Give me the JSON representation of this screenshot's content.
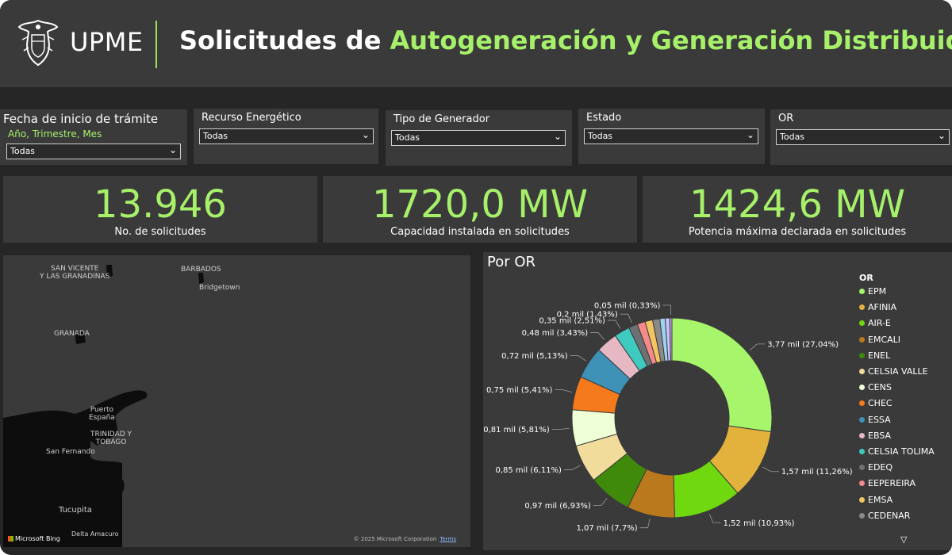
{
  "header": {
    "brand": "UPME",
    "title_prefix": "Solicitudes de ",
    "title_accent": "Autogeneración y Generación Distribuida"
  },
  "filters": [
    {
      "label": "Fecha de inicio de trámite",
      "sublabel": "Año, Trimestre, Mes",
      "value": "Todas"
    },
    {
      "label": "Recurso Energético",
      "value": "Todas"
    },
    {
      "label": "Tipo de Generador",
      "value": "Todas"
    },
    {
      "label": "Estado",
      "value": "Todas"
    },
    {
      "label": "OR",
      "value": "Todas"
    }
  ],
  "kpis": [
    {
      "value": "13.946",
      "caption": "No. de solicitudes"
    },
    {
      "value": "1720,0 MW",
      "caption": "Capacidad instalada en solicitudes"
    },
    {
      "value": "1424,6 MW",
      "caption": "Potencia máxima declarada en solicitudes"
    }
  ],
  "map": {
    "labels": [
      "SAN VICENTE\nY LAS GRANADINAS",
      "BARBADOS",
      "Bridgetown",
      "GRANADA",
      "Puerto\nEspaña",
      "TRINIDAD Y\nTOBAGO",
      "San Fernando",
      "Tucupita",
      "Delta Amacuro"
    ],
    "provider": "Microsoft Bing",
    "copyright": "© 2025 Microsoft Corporation",
    "terms": "Terms"
  },
  "or_panel": {
    "title": "Por OR",
    "legend_title": "OR"
  },
  "chart_data": {
    "type": "pie",
    "donut": true,
    "legend_position": "right",
    "series": [
      {
        "name": "EPM",
        "value": 3.77,
        "label": "3,77 mil (27,04%)",
        "color": "#a6f56a"
      },
      {
        "name": "AFINIA",
        "value": 1.57,
        "label": "1,57 mil (11,26%)",
        "color": "#e3b23c"
      },
      {
        "name": "AIR-E",
        "value": 1.52,
        "label": "1,52 mil (10,93%)",
        "color": "#6fd80f"
      },
      {
        "name": "EMCALI",
        "value": 1.07,
        "label": "1,07 mil (7,7%)",
        "color": "#b9791c"
      },
      {
        "name": "ENEL",
        "value": 0.97,
        "label": "0,97 mil (6,93%)",
        "color": "#3f8a0b"
      },
      {
        "name": "CELSIA VALLE",
        "value": 0.85,
        "label": "0,85 mil (6,11%)",
        "color": "#f2dc9c"
      },
      {
        "name": "CENS",
        "value": 0.81,
        "label": "0,81 mil (5,81%)",
        "color": "#efffd6"
      },
      {
        "name": "CHEC",
        "value": 0.75,
        "label": "0,75 mil (5,41%)",
        "color": "#f57a1c"
      },
      {
        "name": "ESSA",
        "value": 0.72,
        "label": "0,72 mil (5,13%)",
        "color": "#3e91b7"
      },
      {
        "name": "EBSA",
        "value": 0.48,
        "label": "0,48 mil (3,43%)",
        "color": "#e5b8c3"
      },
      {
        "name": "CELSIA TOLIMA",
        "value": 0.35,
        "label": "0,35 mil (2,51%)",
        "color": "#3fcac0"
      },
      {
        "name": "EDEQ",
        "value": 0.2,
        "label": "0,2 mil (1,43%)",
        "color": "#6e7174"
      },
      {
        "name": "EEPEREIRA",
        "value": 0.18,
        "label": "",
        "color": "#f48a8a"
      },
      {
        "name": "EMSA",
        "value": 0.17,
        "label": "",
        "color": "#f2c462"
      },
      {
        "name": "CEDENAR",
        "value": 0.16,
        "label": "",
        "color": "#8a8a8a"
      },
      {
        "name": "",
        "value": 0.12,
        "label": "",
        "color": "#9fd2f0"
      },
      {
        "name": "",
        "value": 0.1,
        "label": "",
        "color": "#c5c5ff"
      },
      {
        "name": "",
        "value": 0.05,
        "label": "0,05 mil (0,33%)",
        "color": "#c9a0e6"
      }
    ]
  }
}
